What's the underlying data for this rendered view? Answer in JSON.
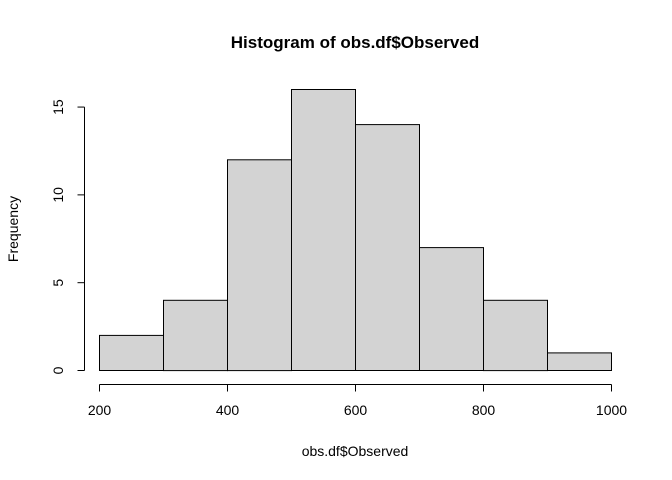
{
  "chart_data": {
    "type": "bar",
    "title": "Histogram of obs.df$Observed",
    "xlabel": "obs.df$Observed",
    "ylabel": "Frequency",
    "bin_edges": [
      200,
      300,
      400,
      500,
      600,
      700,
      800,
      900,
      1000
    ],
    "values": [
      2,
      4,
      12,
      16,
      14,
      7,
      4,
      1
    ],
    "xlim": [
      200,
      1000
    ],
    "ylim": [
      0,
      16
    ],
    "x_ticks": [
      200,
      400,
      600,
      800,
      1000
    ],
    "y_ticks": [
      0,
      5,
      10,
      15
    ],
    "grid": false,
    "colors": {
      "bar_fill": "#d3d3d3",
      "bar_stroke": "#000000"
    }
  }
}
